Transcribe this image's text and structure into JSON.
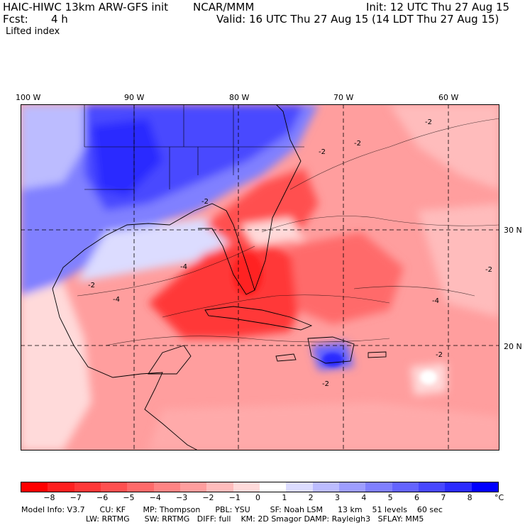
{
  "header": {
    "model": "HAIC-HIWC 13km ARW-GFS init",
    "org": "NCAR/MMM",
    "init": "Init: 12 UTC Thu 27 Aug 15",
    "fcst_label": "Fcst:",
    "fcst_value": "4 h",
    "valid": "Valid: 16 UTC Thu 27 Aug 15 (14 LDT Thu 27 Aug 15)",
    "field": "Lifted index"
  },
  "axes": {
    "lon_labels": [
      "100 W",
      "90 W",
      "80 W",
      "70 W",
      "60 W"
    ],
    "lat_labels": [
      "30 N",
      "20 N"
    ]
  },
  "colorbar": {
    "unit": "°C",
    "labels": [
      "−8",
      "−7",
      "−6",
      "−5",
      "−4",
      "−3",
      "−2",
      "−1",
      "0",
      "1",
      "2",
      "3",
      "4",
      "5",
      "6",
      "7",
      "8"
    ],
    "colors": [
      "#ff0000",
      "#ff2020",
      "#ff3838",
      "#ff5050",
      "#ff6a6a",
      "#ff8484",
      "#ff9e9e",
      "#ffbcbc",
      "#ffdada",
      "#ffffff",
      "#dcdcff",
      "#bcbcff",
      "#9e9eff",
      "#8080ff",
      "#6464ff",
      "#4848ff",
      "#2c2cff",
      "#0000ff"
    ]
  },
  "footer": {
    "line1": "Model Info: V3.7      CU: KF       MP: Thompson      PBL: YSU        SF: Noah LSM      13 km    51 levels    60 sec",
    "line2": "                          LW: RRTMG      SW: RRTMG   DIFF: full    KM: 2D Smagor DAMP: Rayleigh3   SFLAY: MM5"
  },
  "map_contour_labels": [
    "-2",
    "-4",
    "-2",
    "-2",
    "-4",
    "-2",
    "-2",
    "-4",
    "-2",
    "-2",
    "-2"
  ]
}
